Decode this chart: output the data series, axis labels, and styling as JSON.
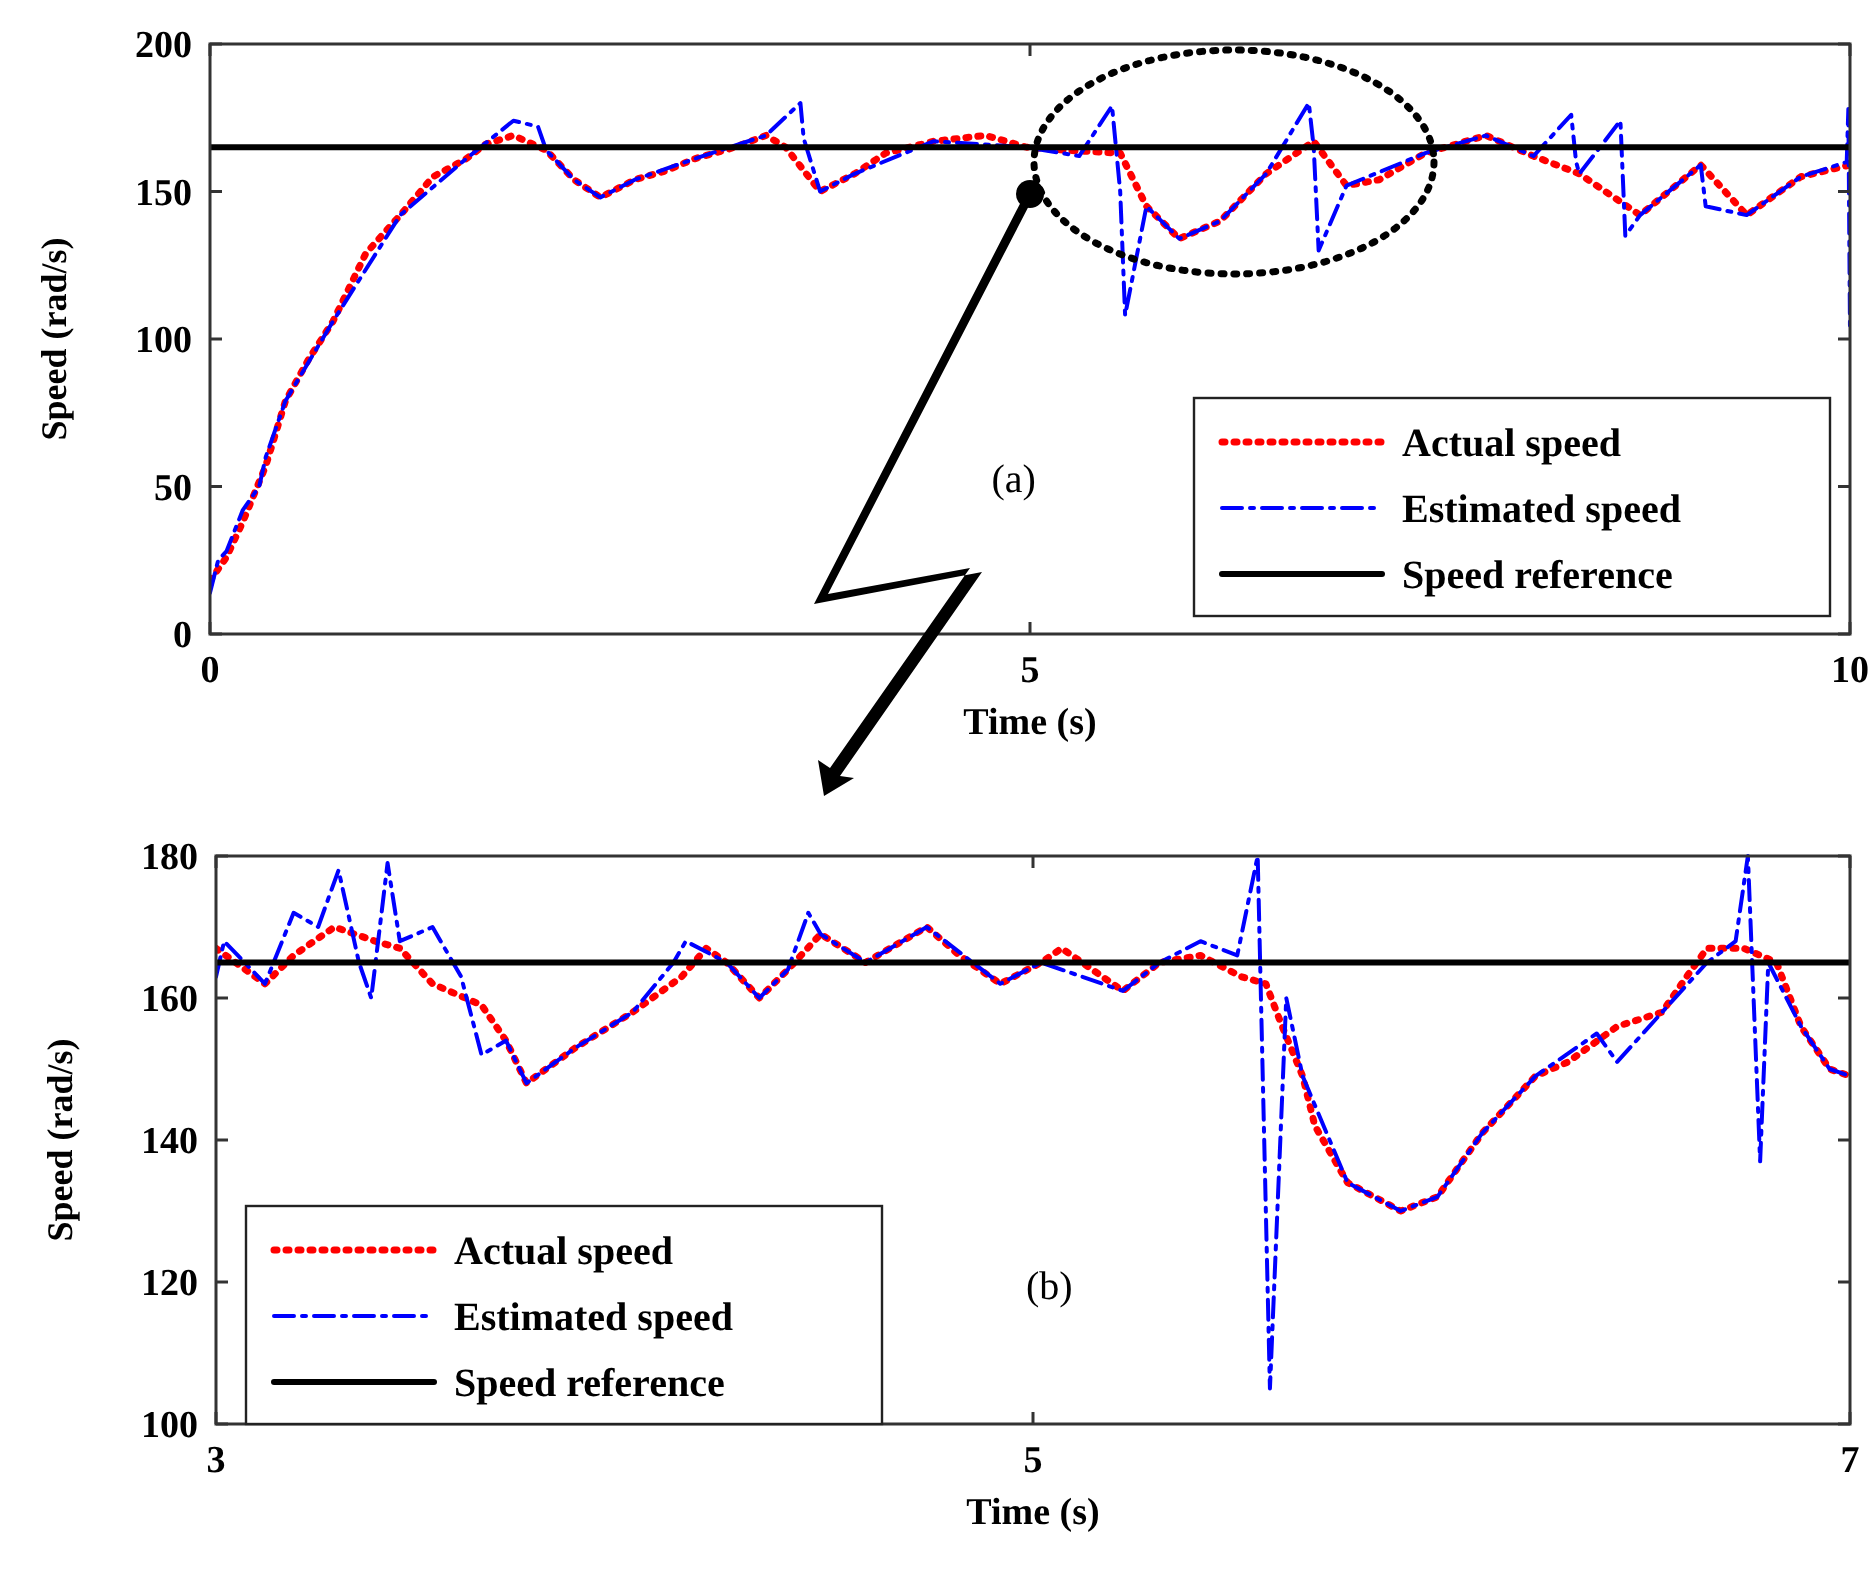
{
  "chart_data": [
    {
      "type": "line",
      "xlabel": "Time (s)",
      "ylabel": "Speed (rad/s)",
      "xlim": [
        0,
        10
      ],
      "ylim": [
        0,
        200
      ],
      "xticks": [
        0,
        5,
        10
      ],
      "yticks": [
        0,
        50,
        100,
        150,
        200
      ],
      "legend": "bottom right",
      "annotations": [
        "(a)"
      ],
      "series": [
        {
          "name": "Actual speed",
          "color": "#ff0000",
          "line_style": "dotted",
          "x": [
            0,
            0.1,
            0.2,
            0.34,
            0.46,
            0.6,
            0.75,
            0.95,
            1.16,
            1.36,
            1.56,
            1.68,
            1.85,
            2.05,
            2.22,
            2.38,
            2.59,
            2.78,
            2.95,
            3.2,
            3.39,
            3.51,
            3.72,
            3.93,
            4.12,
            4.41,
            4.73,
            4.98,
            5.22,
            5.55,
            5.71,
            5.91,
            6.16,
            6.44,
            6.73,
            6.93,
            7.13,
            7.41,
            7.78,
            8.07,
            8.35,
            8.72,
            9.09,
            9.37,
            9.7,
            10
          ],
          "values": [
            18,
            26,
            38,
            57,
            79,
            93,
            106,
            129,
            142,
            155,
            161,
            166,
            169,
            164,
            154,
            148,
            154,
            157,
            161,
            165,
            169,
            165,
            150,
            156,
            163,
            167,
            169,
            165,
            164,
            163,
            145,
            134,
            140,
            156,
            167,
            152,
            154,
            163,
            169,
            162,
            156,
            142,
            159,
            142,
            155,
            159
          ]
        },
        {
          "name": "Estimated speed",
          "color": "#0000ff",
          "line_style": "dashed",
          "x": [
            0,
            0.05,
            0.1,
            0.2,
            0.3,
            0.34,
            0.46,
            0.75,
            1.16,
            1.56,
            1.85,
            2.0,
            2.05,
            2.22,
            2.38,
            2.59,
            2.95,
            3.39,
            3.6,
            3.62,
            3.72,
            3.93,
            4.41,
            4.98,
            5.3,
            5.5,
            5.55,
            5.58,
            5.71,
            5.91,
            6.16,
            6.44,
            6.7,
            6.73,
            6.76,
            6.93,
            7.41,
            7.78,
            8.07,
            8.3,
            8.33,
            8.35,
            8.6,
            8.63,
            8.72,
            9.09,
            9.12,
            9.37,
            9.7,
            9.98,
            9.99,
            10
          ],
          "values": [
            14,
            25,
            28,
            42,
            50,
            60,
            79,
            106,
            142,
            161,
            174,
            172,
            164,
            154,
            148,
            154,
            161,
            169,
            180,
            168,
            150,
            156,
            167,
            165,
            162,
            179,
            150,
            108,
            145,
            134,
            140,
            156,
            180,
            165,
            130,
            152,
            163,
            169,
            162,
            176,
            160,
            156,
            174,
            135,
            142,
            159,
            145,
            142,
            155,
            160,
            178,
            103
          ]
        },
        {
          "name": "Speed reference",
          "color": "#000000",
          "line_style": "solid",
          "x": [
            0,
            10
          ],
          "values": [
            165,
            165
          ]
        }
      ]
    },
    {
      "type": "line",
      "xlabel": "Time (s)",
      "ylabel": "Speed (rad/s)",
      "xlim": [
        3,
        7
      ],
      "ylim": [
        100,
        180
      ],
      "xticks": [
        3,
        5,
        7
      ],
      "yticks": [
        100,
        120,
        140,
        160,
        180
      ],
      "legend": "bottom left",
      "annotations": [
        "(b)"
      ],
      "series": [
        {
          "name": "Actual speed",
          "color": "#ff0000",
          "line_style": "dotted",
          "x": [
            3,
            3.12,
            3.19,
            3.29,
            3.39,
            3.45,
            3.53,
            3.65,
            3.71,
            3.76,
            3.88,
            4.02,
            4.14,
            4.2,
            4.25,
            4.33,
            4.4,
            4.48,
            4.59,
            4.74,
            4.82,
            4.92,
            5.02,
            5.07,
            5.22,
            5.31,
            5.41,
            5.51,
            5.57,
            5.61,
            5.66,
            5.69,
            5.77,
            5.9,
            5.99,
            6.1,
            6.23,
            6.31,
            6.43,
            6.54,
            6.6,
            6.65,
            6.74,
            6.82,
            6.88,
            6.95,
            7
          ],
          "values": [
            167,
            162,
            166,
            170,
            168,
            167,
            162,
            159,
            154,
            148,
            153,
            158,
            163,
            167,
            165,
            160,
            164,
            169,
            165,
            170,
            166,
            162,
            165,
            167,
            161,
            165,
            166,
            163,
            162,
            156,
            149,
            142,
            134,
            130,
            132,
            141,
            149,
            151,
            156,
            158,
            163,
            167,
            167,
            165,
            156,
            150,
            149
          ]
        },
        {
          "name": "Estimated speed",
          "color": "#0000ff",
          "line_style": "dashed",
          "x": [
            3,
            3.02,
            3.12,
            3.19,
            3.25,
            3.3,
            3.35,
            3.38,
            3.42,
            3.45,
            3.53,
            3.6,
            3.65,
            3.71,
            3.76,
            3.88,
            4.02,
            4.12,
            4.15,
            4.25,
            4.33,
            4.4,
            4.45,
            4.48,
            4.59,
            4.74,
            4.92,
            5.02,
            5.22,
            5.31,
            5.41,
            5.5,
            5.55,
            5.58,
            5.62,
            5.66,
            5.77,
            5.9,
            5.99,
            6.1,
            6.23,
            6.38,
            6.43,
            6.54,
            6.65,
            6.72,
            6.75,
            6.78,
            6.8,
            6.88,
            6.95,
            7
          ],
          "values": [
            163,
            168,
            162,
            172,
            170,
            178,
            165,
            160,
            179,
            168,
            170,
            163,
            152,
            154,
            148,
            153,
            158,
            165,
            168,
            165,
            160,
            164,
            172,
            169,
            165,
            170,
            162,
            165,
            161,
            165,
            168,
            166,
            180,
            105,
            160,
            149,
            134,
            130,
            132,
            141,
            149,
            155,
            151,
            158,
            165,
            168,
            180,
            137,
            165,
            156,
            150,
            149
          ]
        },
        {
          "name": "Speed reference",
          "color": "#000000",
          "line_style": "solid",
          "x": [
            3,
            7
          ],
          "values": [
            165,
            165
          ]
        }
      ]
    }
  ]
}
